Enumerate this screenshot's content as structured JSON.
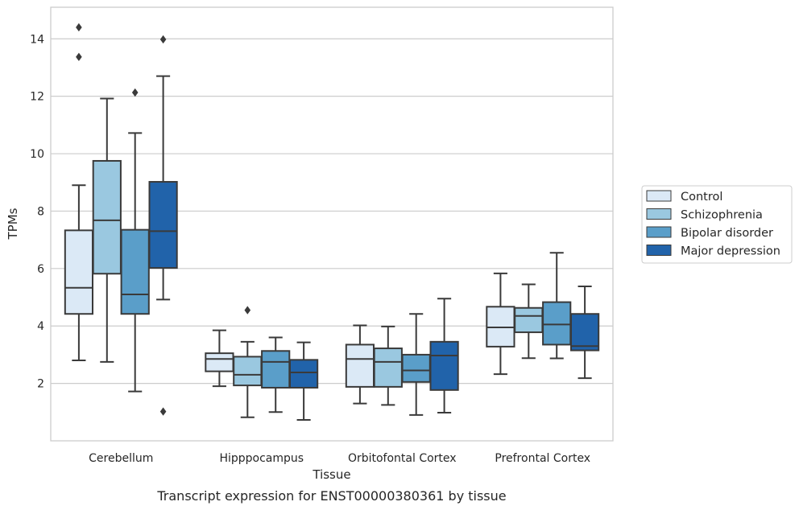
{
  "caption": "Transcript expression for ENST00000380361 by tissue",
  "chart_data": {
    "type": "box",
    "xlabel": "Tissue",
    "ylabel": "TPMs",
    "ylim": [
      0.0,
      15.1
    ],
    "yticks": [
      2,
      4,
      6,
      8,
      10,
      12,
      14
    ],
    "grid": "horizontal",
    "legend_position": "right",
    "categories": [
      "Cerebellum",
      "Hipppocampus",
      "Orbitofontal Cortex",
      "Prefrontal Cortex"
    ],
    "series": [
      {
        "name": "Control",
        "color": "#dbe9f6",
        "boxes": [
          {
            "whisker_low": 2.8,
            "q1": 4.42,
            "median": 5.33,
            "q3": 7.33,
            "whisker_high": 8.9,
            "outliers": [
              14.4,
              13.37
            ]
          },
          {
            "whisker_low": 1.9,
            "q1": 2.42,
            "median": 2.85,
            "q3": 3.05,
            "whisker_high": 3.85,
            "outliers": []
          },
          {
            "whisker_low": 1.3,
            "q1": 1.88,
            "median": 2.85,
            "q3": 3.35,
            "whisker_high": 4.02,
            "outliers": []
          },
          {
            "whisker_low": 2.32,
            "q1": 3.28,
            "median": 3.95,
            "q3": 4.67,
            "whisker_high": 5.83,
            "outliers": []
          }
        ]
      },
      {
        "name": "Schizophrenia",
        "color": "#9ac8e0",
        "boxes": [
          {
            "whisker_low": 2.75,
            "q1": 5.82,
            "median": 7.68,
            "q3": 9.75,
            "whisker_high": 11.92,
            "outliers": []
          },
          {
            "whisker_low": 0.82,
            "q1": 1.93,
            "median": 2.3,
            "q3": 2.93,
            "whisker_high": 3.45,
            "outliers": [
              4.55
            ]
          },
          {
            "whisker_low": 1.25,
            "q1": 1.88,
            "median": 2.75,
            "q3": 3.22,
            "whisker_high": 3.98,
            "outliers": []
          },
          {
            "whisker_low": 2.88,
            "q1": 3.78,
            "median": 4.35,
            "q3": 4.63,
            "whisker_high": 5.45,
            "outliers": []
          }
        ]
      },
      {
        "name": "Bipolar disorder",
        "color": "#5a9ec9",
        "boxes": [
          {
            "whisker_low": 1.72,
            "q1": 4.42,
            "median": 5.1,
            "q3": 7.35,
            "whisker_high": 10.72,
            "outliers": [
              12.13
            ]
          },
          {
            "whisker_low": 1.0,
            "q1": 1.85,
            "median": 2.75,
            "q3": 3.13,
            "whisker_high": 3.6,
            "outliers": []
          },
          {
            "whisker_low": 0.9,
            "q1": 2.05,
            "median": 2.45,
            "q3": 3.0,
            "whisker_high": 4.42,
            "outliers": []
          },
          {
            "whisker_low": 2.87,
            "q1": 3.35,
            "median": 4.05,
            "q3": 4.83,
            "whisker_high": 6.55,
            "outliers": []
          }
        ]
      },
      {
        "name": "Major depression",
        "color": "#2163aa",
        "boxes": [
          {
            "whisker_low": 4.92,
            "q1": 6.02,
            "median": 7.3,
            "q3": 9.02,
            "whisker_high": 12.7,
            "outliers": [
              13.98,
              1.02
            ]
          },
          {
            "whisker_low": 0.73,
            "q1": 1.85,
            "median": 2.38,
            "q3": 2.82,
            "whisker_high": 3.43,
            "outliers": []
          },
          {
            "whisker_low": 0.98,
            "q1": 1.77,
            "median": 2.97,
            "q3": 3.45,
            "whisker_high": 4.95,
            "outliers": []
          },
          {
            "whisker_low": 2.18,
            "q1": 3.15,
            "median": 3.3,
            "q3": 4.42,
            "whisker_high": 5.38,
            "outliers": []
          }
        ]
      }
    ]
  }
}
